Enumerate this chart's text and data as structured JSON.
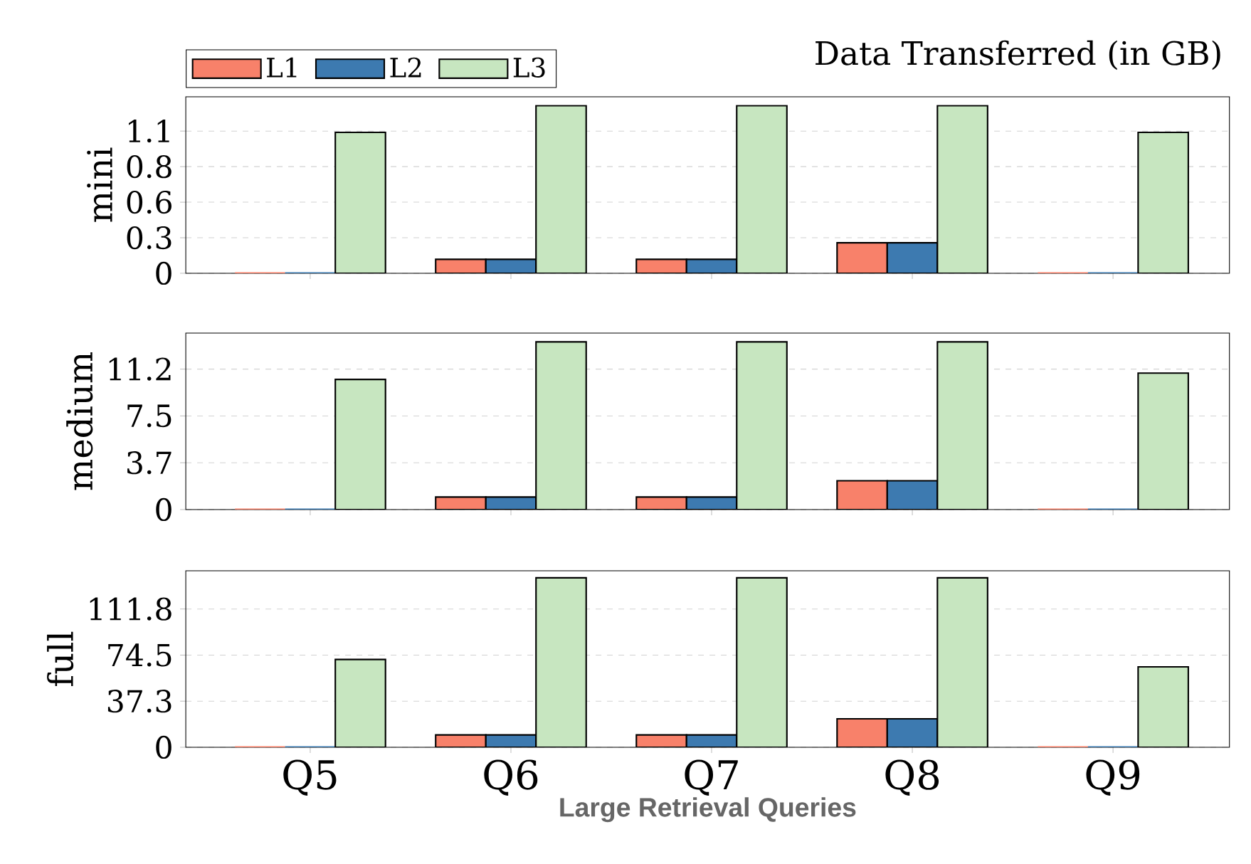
{
  "chart_data": [
    {
      "type": "bar",
      "title": "Data Transferred (in GB)",
      "ylabel": "mini",
      "categories": [
        null,
        null,
        null,
        null,
        null
      ],
      "series": [
        {
          "name": "L1",
          "color": "#f8816a",
          "values": [
            0,
            0.11,
            0.11,
            0.24,
            0
          ]
        },
        {
          "name": "L2",
          "color": "#3d7ab0",
          "values": [
            0,
            0.11,
            0.11,
            0.24,
            0
          ]
        },
        {
          "name": "L3",
          "color": "#c7e6c0",
          "values": [
            1.11,
            1.32,
            1.32,
            1.32,
            1.11
          ]
        }
      ],
      "ylim": [
        0,
        1.39
      ],
      "yticks": [
        0,
        {
          "value": 0.28,
          "label": "0.3"
        },
        {
          "value": 0.56,
          "label": "0.6"
        },
        {
          "value": 0.84,
          "label": "0.8"
        },
        {
          "value": 1.12,
          "label": "1.1"
        }
      ],
      "grid": "y",
      "legend": "top",
      "tick_labels": "y"
    },
    {
      "type": "bar",
      "ylabel": "medium",
      "categories": [
        null,
        null,
        null,
        null,
        null
      ],
      "series": [
        {
          "color": "#f8816a",
          "values": [
            0,
            1.0,
            1.0,
            2.3,
            0
          ]
        },
        {
          "color": "#3d7ab0",
          "values": [
            0,
            1.0,
            1.0,
            2.3,
            0
          ]
        },
        {
          "color": "#c7e6c0",
          "values": [
            10.4,
            13.4,
            13.4,
            13.4,
            10.9
          ]
        }
      ],
      "ylim": [
        0,
        14.1
      ],
      "yticks": [
        0,
        {
          "value": 3.74,
          "label": "3.7"
        },
        {
          "value": 7.48,
          "label": "7.5"
        },
        {
          "value": 11.22,
          "label": "11.2"
        }
      ],
      "grid": "y",
      "tick_labels": "y"
    },
    {
      "type": "bar",
      "ylabel": "full",
      "xlabel": "Large Retrieval Queries",
      "categories": [
        "Q5",
        "Q6",
        "Q7",
        "Q8",
        "Q9"
      ],
      "series": [
        {
          "color": "#f8816a",
          "values": [
            0,
            10,
            10,
            23,
            0
          ]
        },
        {
          "color": "#3d7ab0",
          "values": [
            0,
            10,
            10,
            23,
            0
          ]
        },
        {
          "color": "#c7e6c0",
          "values": [
            71,
            137,
            137,
            137,
            65
          ]
        }
      ],
      "ylim": [
        0,
        142.7
      ],
      "yticks": [
        0,
        {
          "value": 37.27,
          "label": "37.3"
        },
        {
          "value": 74.53,
          "label": "74.5"
        },
        {
          "value": 111.8,
          "label": "111.8"
        }
      ],
      "grid": "y"
    }
  ]
}
